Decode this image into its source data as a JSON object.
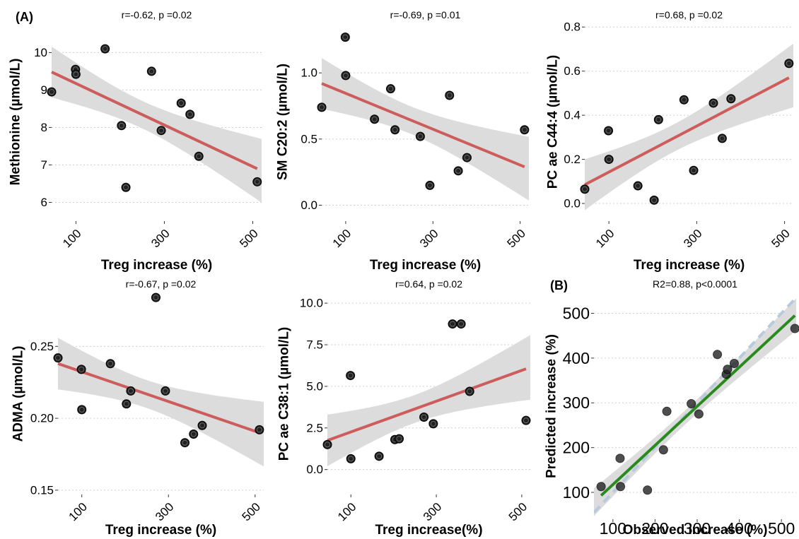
{
  "panel_labels": {
    "a": "(A)",
    "b": "(B)"
  },
  "colors": {
    "point": "#222222",
    "fit_red": "#cd5c5c",
    "fit_green": "#2a8a1f",
    "ci_band": "#dcdcdc",
    "identity_line": "#b7c9dc",
    "grid": "#cfcfcf"
  },
  "chart_data": [
    {
      "type": "scatter",
      "title": "r=-0.62, p =0.02",
      "xlabel": "Treg increase (%)",
      "ylabel": "Methionine (µmol/L)",
      "xlim": [
        45,
        520
      ],
      "ylim": [
        5.5,
        10.8
      ],
      "xticks": [
        100,
        300,
        500
      ],
      "yticks": [
        6,
        7,
        8,
        9,
        10
      ],
      "ytick_labels": [
        "6",
        "7",
        "8",
        "9",
        "10"
      ],
      "xtick_rotated": true,
      "grid": "horizontal dotted",
      "points": [
        [
          45,
          8.95
        ],
        [
          99,
          9.55
        ],
        [
          100,
          9.42
        ],
        [
          166,
          10.1
        ],
        [
          203,
          8.05
        ],
        [
          213,
          6.4
        ],
        [
          271,
          9.5
        ],
        [
          293,
          7.92
        ],
        [
          338,
          8.65
        ],
        [
          358,
          8.35
        ],
        [
          378,
          7.23
        ],
        [
          510,
          6.55
        ]
      ],
      "fit": [
        [
          45,
          9.48
        ],
        [
          510,
          6.9
        ]
      ],
      "fit_color": "red"
    },
    {
      "type": "scatter",
      "title": "r=-0.69, p =0.01",
      "xlabel": "Treg increase (%)",
      "ylabel": "SM C20:2 (µmol/L)",
      "xlim": [
        45,
        520
      ],
      "ylim": [
        -0.12,
        1.38
      ],
      "xticks": [
        100,
        300,
        500
      ],
      "yticks": [
        0,
        0.5,
        1
      ],
      "ytick_labels": [
        "0.0",
        "0.5",
        "1.0"
      ],
      "xtick_rotated": true,
      "grid": "horizontal dotted",
      "points": [
        [
          45,
          0.74
        ],
        [
          99,
          1.27
        ],
        [
          100,
          0.98
        ],
        [
          166,
          0.65
        ],
        [
          203,
          0.88
        ],
        [
          213,
          0.57
        ],
        [
          271,
          0.52
        ],
        [
          293,
          0.15
        ],
        [
          338,
          0.83
        ],
        [
          358,
          0.26
        ],
        [
          378,
          0.36
        ],
        [
          510,
          0.57
        ]
      ],
      "fit": [
        [
          45,
          0.92
        ],
        [
          510,
          0.29
        ]
      ],
      "fit_color": "red"
    },
    {
      "type": "scatter",
      "title": "r=0.68, p =0.02",
      "xlabel": "Treg increase (%)",
      "ylabel": "PC ae C44:4 (µmol/L)",
      "xlim": [
        45,
        520
      ],
      "ylim": [
        -0.08,
        0.82
      ],
      "xticks": [
        100,
        300,
        500
      ],
      "yticks": [
        0,
        0.2,
        0.4,
        0.6,
        0.8
      ],
      "ytick_labels": [
        "0.0",
        "0.2",
        "0.4",
        "0.6",
        "0.8"
      ],
      "xtick_rotated": true,
      "grid": "horizontal dotted",
      "points": [
        [
          45,
          0.065
        ],
        [
          99,
          0.33
        ],
        [
          100,
          0.2
        ],
        [
          166,
          0.08
        ],
        [
          203,
          0.015
        ],
        [
          213,
          0.38
        ],
        [
          271,
          0.47
        ],
        [
          293,
          0.15
        ],
        [
          338,
          0.455
        ],
        [
          358,
          0.295
        ],
        [
          378,
          0.475
        ],
        [
          510,
          0.635
        ]
      ],
      "fit": [
        [
          45,
          0.085
        ],
        [
          510,
          0.57
        ]
      ],
      "fit_color": "red"
    },
    {
      "type": "scatter",
      "title": "r=-0.67, p =0.02",
      "xlabel": "Treg increase (%)",
      "ylabel": "ADMA (µmol/L)",
      "xlim": [
        45,
        520
      ],
      "ylim": [
        0.147,
        0.287
      ],
      "xticks": [
        100,
        300,
        500
      ],
      "yticks": [
        0.15,
        0.2,
        0.25
      ],
      "ytick_labels": [
        "0.15",
        "0.20",
        "0.25"
      ],
      "xtick_rotated": true,
      "grid": "horizontal dotted",
      "points": [
        [
          45,
          0.242
        ],
        [
          99,
          0.234
        ],
        [
          100,
          0.206
        ],
        [
          166,
          0.238
        ],
        [
          203,
          0.21
        ],
        [
          213,
          0.219
        ],
        [
          271,
          0.284
        ],
        [
          293,
          0.219
        ],
        [
          338,
          0.183
        ],
        [
          358,
          0.189
        ],
        [
          378,
          0.195
        ],
        [
          510,
          0.192
        ]
      ],
      "fit": [
        [
          45,
          0.238
        ],
        [
          510,
          0.19
        ]
      ],
      "fit_color": "red"
    },
    {
      "type": "scatter",
      "title": "r=0.64, p =0.02",
      "xlabel": "Treg increase(%)",
      "ylabel": "PC ae C38:1 (µmol/L)",
      "xlim": [
        45,
        520
      ],
      "ylim": [
        -1.5,
        10.6
      ],
      "xticks": [
        100,
        300,
        500
      ],
      "yticks": [
        0,
        2.5,
        5,
        7.5,
        10
      ],
      "ytick_labels": [
        "0.0",
        "2.5",
        "5.0",
        "7.5",
        "10.0"
      ],
      "xtick_rotated": true,
      "grid": "horizontal dotted",
      "points": [
        [
          45,
          1.5
        ],
        [
          99,
          5.65
        ],
        [
          100,
          0.65
        ],
        [
          166,
          0.8
        ],
        [
          203,
          1.8
        ],
        [
          213,
          1.85
        ],
        [
          271,
          3.15
        ],
        [
          293,
          2.75
        ],
        [
          338,
          8.75
        ],
        [
          358,
          8.75
        ],
        [
          378,
          4.7
        ],
        [
          510,
          2.95
        ]
      ],
      "fit": [
        [
          45,
          1.75
        ],
        [
          510,
          6.05
        ]
      ],
      "fit_color": "red"
    },
    {
      "type": "scatter",
      "title": "R2=0.88, p<0.0001",
      "xlabel": "Observed increase (%)",
      "ylabel": "Predicted increase (%)",
      "xlim": [
        55,
        535
      ],
      "ylim": [
        40,
        545
      ],
      "xticks": [
        100,
        200,
        300,
        400,
        500
      ],
      "yticks": [
        100,
        200,
        300,
        400,
        500
      ],
      "ytick_labels": [
        "100",
        "200",
        "300",
        "400",
        "500"
      ],
      "xtick_rotated": false,
      "grid": "horizontal dotted",
      "identity_line": true,
      "points": [
        [
          72,
          113
        ],
        [
          117,
          176
        ],
        [
          118,
          113
        ],
        [
          182,
          105
        ],
        [
          220,
          195
        ],
        [
          228,
          281
        ],
        [
          286,
          298
        ],
        [
          304,
          275
        ],
        [
          348,
          408
        ],
        [
          369,
          364
        ],
        [
          372,
          375
        ],
        [
          388,
          388
        ],
        [
          532,
          466
        ]
      ],
      "fit": [
        [
          72,
          93
        ],
        [
          532,
          495
        ]
      ],
      "fit_color": "green"
    }
  ]
}
